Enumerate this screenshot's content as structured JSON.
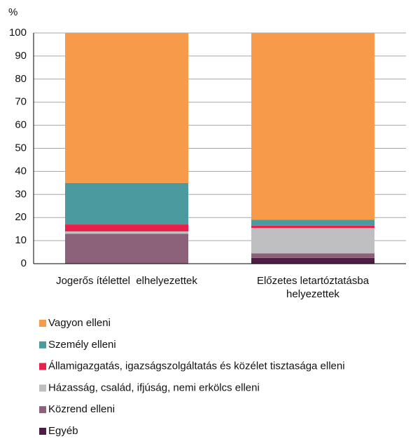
{
  "chart_data": {
    "type": "stacked_bar",
    "y_label": "%",
    "categories": [
      "Jogerős ítélettel  elhelyezettek",
      "Előzetes letartóztatásba helyezettek"
    ],
    "series": [
      {
        "name": "Egyéb",
        "color": "#4d1d45",
        "values": [
          0,
          2.5
        ]
      },
      {
        "name": "Közrend elleni",
        "color": "#8b6279",
        "values": [
          13,
          2
        ]
      },
      {
        "name": "Házasság, család, ifjúság, nemi erkölcs elleni",
        "color": "#bfbfc2",
        "values": [
          1,
          11
        ]
      },
      {
        "name": "Államigazgatás, igazságszolgáltatás és közélet tisztasága elleni",
        "color": "#e8204a",
        "values": [
          3,
          1
        ]
      },
      {
        "name": "Személy elleni",
        "color": "#4a9aa0",
        "values": [
          18,
          2.5
        ]
      },
      {
        "name": "Vagyon elleni",
        "color": "#f79a4a",
        "values": [
          65,
          81
        ]
      }
    ],
    "ylim": [
      0,
      100
    ],
    "yticks": [
      0,
      10,
      20,
      30,
      40,
      50,
      60,
      70,
      80,
      90,
      100
    ],
    "grid": true
  }
}
